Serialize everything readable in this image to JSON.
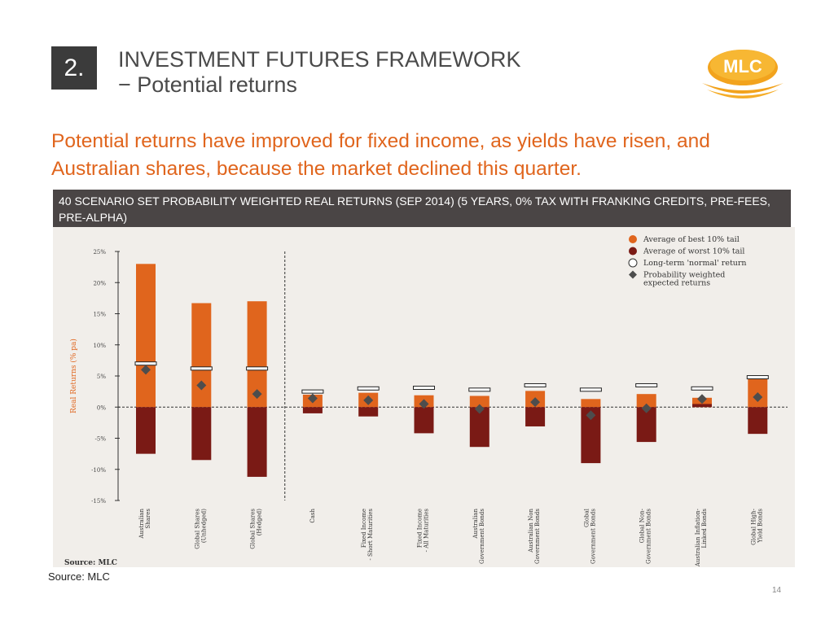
{
  "slide": {
    "section_number": "2.",
    "title_line1": "INVESTMENT FUTURES FRAMEWORK",
    "title_line2": "− Potential returns",
    "logo_text": "MLC",
    "headline": "Potential returns have improved for fixed income, as yields have risen, and Australian shares, because the market declined this quarter.",
    "chart_header": "40 SCENARIO SET PROBABILITY WEIGHTED REAL RETURNS (SEP 2014) (5 YEARS, 0% TAX WITH FRANKING CREDITS, PRE-FEES, PRE-ALPHA)",
    "source_note": "Source: MLC",
    "page_number": "14"
  },
  "colors": {
    "best": "#e0651d",
    "worst": "#7a1a15",
    "expected": "#4d4d4d",
    "accent": "#e0651d",
    "logo": "#f0a21e"
  },
  "chart_data": {
    "type": "bar",
    "categories": [
      "Australian Shares",
      "Global Shares (Unhedged)",
      "Global Shares (Hedged)",
      "Cash",
      "Fixed Income - Short Maturities",
      "Fixed Income - All Maturities",
      "Australian Government Bonds",
      "Australian Non Government Bonds",
      "Global Government Bonds",
      "Global Non-Government Bonds",
      "Australian Inflation-Linked Bonds",
      "Global High-Yield Bonds"
    ],
    "series": [
      {
        "name": "Average of best 10% tail",
        "values": [
          23.0,
          16.7,
          17.0,
          2.0,
          2.3,
          1.9,
          1.8,
          2.6,
          1.3,
          2.1,
          1.5,
          4.5
        ]
      },
      {
        "name": "Average of worst 10% tail",
        "values": [
          -7.5,
          -8.5,
          -11.2,
          -1.0,
          -1.5,
          -4.2,
          -6.4,
          -3.1,
          -9.0,
          -5.6,
          0.5,
          -4.3
        ]
      },
      {
        "name": "Long-term 'normal' return",
        "values": [
          7.0,
          6.2,
          6.2,
          2.5,
          3.0,
          3.1,
          2.8,
          3.5,
          2.8,
          3.5,
          3.0,
          4.8
        ]
      },
      {
        "name": "Probability weighted expected returns",
        "values": [
          6.0,
          3.5,
          2.1,
          1.4,
          1.1,
          0.5,
          -0.3,
          0.8,
          -1.3,
          -0.2,
          1.3,
          1.6
        ]
      }
    ],
    "ylabel": "Real Returns (% pa)",
    "ylim": [
      -15,
      25
    ],
    "yticks": [
      25,
      20,
      15,
      10,
      5,
      0,
      -5,
      -10,
      -15
    ],
    "ytick_labels": [
      "25%",
      "20%",
      "15%",
      "10%",
      "5%",
      "0%",
      "-5%",
      "-10%",
      "-15%"
    ],
    "legend": [
      "Average of best 10% tail",
      "Average of worst 10% tail",
      "Long-term 'normal' return",
      "Probability weighted expected returns"
    ],
    "legend_position": "top-right",
    "grid": false,
    "source": "Source: MLC"
  }
}
